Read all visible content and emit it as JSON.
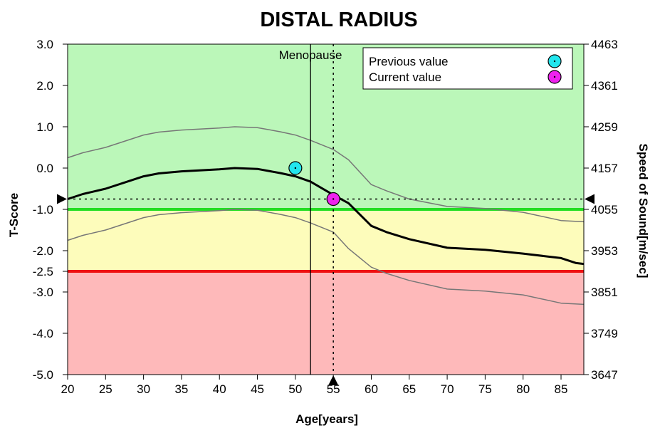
{
  "chart_data": {
    "type": "line",
    "title": "DISTAL RADIUS",
    "xlabel": "Age[years]",
    "ylabel_left": "T-Score",
    "ylabel_right": "Speed of Sound[m/sec]",
    "xlim": [
      20,
      88
    ],
    "ylim": [
      -5.0,
      3.0
    ],
    "x_ticks": [
      20,
      25,
      30,
      35,
      40,
      45,
      50,
      55,
      60,
      65,
      70,
      75,
      80,
      85
    ],
    "y_ticks": [
      {
        "value": 3.0,
        "label": "3.0"
      },
      {
        "value": 2.0,
        "label": "2.0"
      },
      {
        "value": 1.0,
        "label": "1.0"
      },
      {
        "value": 0.0,
        "label": "0.0"
      },
      {
        "value": -1.0,
        "label": "-1.0"
      },
      {
        "value": -2.0,
        "label": "-2.0"
      },
      {
        "value": -2.5,
        "label": "-2.5"
      },
      {
        "value": -3.0,
        "label": "-3.0"
      },
      {
        "value": -4.0,
        "label": "-4.0"
      },
      {
        "value": -5.0,
        "label": "-5.0"
      }
    ],
    "y2_ticks": [
      {
        "value": 3.0,
        "label": "4463"
      },
      {
        "value": 2.0,
        "label": "4361"
      },
      {
        "value": 1.0,
        "label": "4259"
      },
      {
        "value": 0.0,
        "label": "4157"
      },
      {
        "value": -1.0,
        "label": "4055"
      },
      {
        "value": -2.0,
        "label": "3953"
      },
      {
        "value": -3.0,
        "label": "3851"
      },
      {
        "value": -4.0,
        "label": "3749"
      },
      {
        "value": -5.0,
        "label": "3647"
      }
    ],
    "zones": [
      {
        "from": -1.0,
        "to": 3.0,
        "color": "#bbf7b9"
      },
      {
        "from": -2.5,
        "to": -1.0,
        "color": "#fdfcbb"
      },
      {
        "from": -5.0,
        "to": -2.5,
        "color": "#feb9ba"
      }
    ],
    "thresholds": [
      {
        "value": -1.0,
        "color": "#22dd22"
      },
      {
        "value": -2.5,
        "color": "#ee1111"
      }
    ],
    "series": [
      {
        "role": "mean",
        "color": "#000000",
        "x": [
          20,
          22,
          25,
          30,
          32,
          35,
          40,
          42,
          45,
          48,
          50,
          52,
          55,
          57,
          60,
          62,
          65,
          70,
          75,
          80,
          85,
          87,
          88
        ],
        "y": [
          -0.75,
          -0.63,
          -0.5,
          -0.2,
          -0.13,
          -0.08,
          -0.03,
          0.0,
          -0.02,
          -0.12,
          -0.2,
          -0.33,
          -0.65,
          -0.85,
          -1.4,
          -1.55,
          -1.72,
          -1.93,
          -1.98,
          -2.07,
          -2.18,
          -2.3,
          -2.32
        ]
      },
      {
        "role": "upper",
        "color": "#777777",
        "x": [
          20,
          22,
          25,
          30,
          32,
          35,
          40,
          42,
          45,
          48,
          50,
          52,
          55,
          57,
          60,
          62,
          65,
          70,
          75,
          80,
          85,
          88
        ],
        "y": [
          0.25,
          0.37,
          0.5,
          0.8,
          0.87,
          0.92,
          0.97,
          1.0,
          0.98,
          0.88,
          0.8,
          0.67,
          0.45,
          0.2,
          -0.4,
          -0.55,
          -0.75,
          -0.93,
          -0.98,
          -1.07,
          -1.27,
          -1.3
        ]
      },
      {
        "role": "lower",
        "color": "#777777",
        "x": [
          20,
          22,
          25,
          30,
          32,
          35,
          40,
          42,
          45,
          48,
          50,
          52,
          55,
          57,
          60,
          62,
          65,
          70,
          75,
          80,
          85,
          88
        ],
        "y": [
          -1.75,
          -1.63,
          -1.5,
          -1.2,
          -1.13,
          -1.08,
          -1.03,
          -1.0,
          -1.02,
          -1.12,
          -1.2,
          -1.33,
          -1.55,
          -1.95,
          -2.4,
          -2.55,
          -2.72,
          -2.93,
          -2.98,
          -3.07,
          -3.27,
          -3.3
        ]
      }
    ],
    "menopause": {
      "x": 52,
      "label": "Menopause"
    },
    "current_marker": {
      "x": 55,
      "y": -0.75
    },
    "points": [
      {
        "name": "Previous value",
        "x": 50,
        "y": 0.0,
        "color": "#22e6ee"
      },
      {
        "name": "Current value",
        "x": 55,
        "y": -0.75,
        "color": "#ee22ee"
      }
    ],
    "legend": {
      "position": "top-right",
      "entries": [
        {
          "label": "Previous value",
          "color": "#22e6ee"
        },
        {
          "label": "Current value",
          "color": "#ee22ee"
        }
      ]
    }
  }
}
